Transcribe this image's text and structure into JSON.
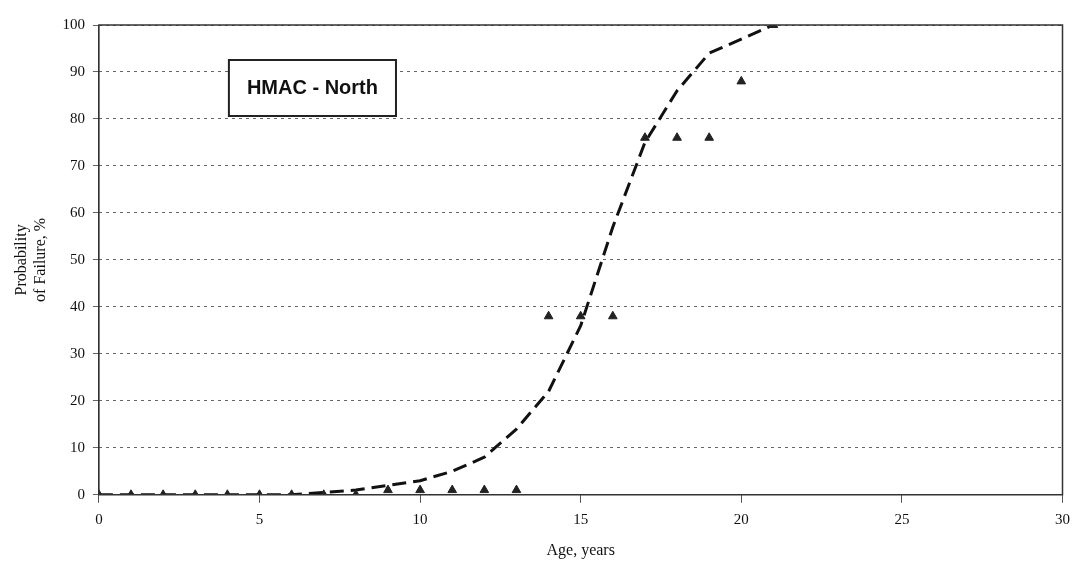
{
  "chart_data": {
    "type": "scatter",
    "xlabel": "Age, years",
    "ylabel": "Probability\nof Failure, %",
    "annotations": [
      "HMAC - North"
    ],
    "xlim": [
      0,
      30
    ],
    "xticks": [
      0,
      5,
      10,
      15,
      20,
      25,
      30
    ],
    "ylim": [
      0,
      100
    ],
    "yticks": [
      0,
      10,
      20,
      30,
      40,
      50,
      60,
      70,
      80,
      90,
      100
    ],
    "grid": "y",
    "legend": false,
    "marker": "triangle",
    "series": [
      {
        "color": "#222222",
        "x": [
          0,
          1,
          2,
          3,
          4,
          5,
          6,
          7,
          8,
          9,
          10,
          11,
          12,
          13,
          14,
          15,
          16,
          17,
          18,
          19,
          20,
          21
        ],
        "values": [
          0,
          0,
          0,
          0,
          0,
          0,
          0,
          0,
          0,
          1,
          1,
          1,
          1,
          1,
          38,
          38,
          38,
          76,
          76,
          76,
          88,
          100
        ]
      },
      {
        "type": "line",
        "color": "#111111",
        "line_style": "dashed",
        "marker": "none",
        "x": [
          0,
          2,
          4,
          6,
          7,
          8,
          9,
          10,
          11,
          12,
          13,
          14,
          15,
          16,
          17,
          18,
          19,
          20,
          21
        ],
        "values": [
          0,
          0,
          0,
          0,
          0.5,
          1,
          2,
          3,
          5,
          8,
          14,
          22,
          36,
          57,
          75,
          86,
          94,
          97,
          100
        ]
      }
    ]
  }
}
